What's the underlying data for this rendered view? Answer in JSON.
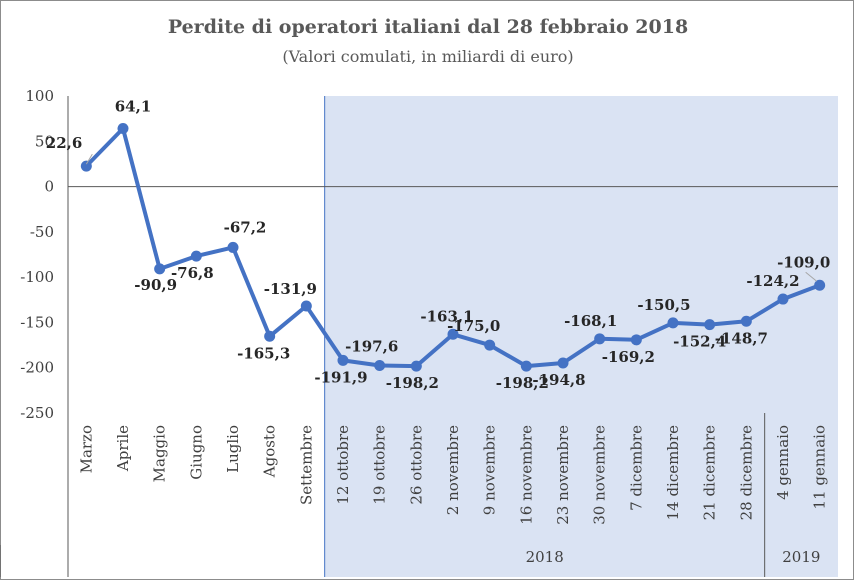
{
  "chart_data": {
    "type": "line",
    "title": "Perdite di operatori italiani  dal 28 febbraio 2018",
    "subtitle": "(Valori comulati, in miliardi di euro)",
    "categories": [
      "Marzo",
      "Aprile",
      "Maggio",
      "Giugno",
      "Luglio",
      "Agosto",
      "Settembre",
      "12 ottobre",
      "19 ottobre",
      "26 ottobre",
      "2 novembre",
      "9 novembre",
      "16 novembre",
      "23 novembre",
      "30 novembre",
      "7 dicembre",
      "14 dicembre",
      "21 dicembre",
      "28 dicembre",
      "4 gennaio",
      "11 gennaio"
    ],
    "values": [
      22.6,
      64.1,
      -90.9,
      -76.8,
      -67.2,
      -165.3,
      -131.9,
      -191.9,
      -197.6,
      -198.2,
      -163.1,
      -175.0,
      -198.2,
      -194.8,
      -168.1,
      -169.2,
      -150.5,
      -152.4,
      -148.7,
      -124.2,
      -109.0
    ],
    "data_labels": [
      "22,6",
      "64,1",
      "-90,9",
      "-76,8",
      "-67,2",
      "-165,3",
      "-131,9",
      "-191,9",
      "-197,6",
      "-198,2",
      "-163,1",
      "-175,0",
      "-198,2",
      "-194,8",
      "-168,1",
      "-169,2",
      "-150,5",
      "-152,4",
      "-148,7",
      "-124,2",
      "-109,0"
    ],
    "yticks": [
      "100",
      "50",
      "0",
      "-50",
      "-100",
      "-150",
      "-200",
      "-250"
    ],
    "ytick_values": [
      100,
      50,
      0,
      -50,
      -100,
      -150,
      -200,
      -250
    ],
    "ylim": [
      -250,
      100
    ],
    "groups": [
      {
        "label": "2018",
        "from": 7,
        "to": 18
      },
      {
        "label": "2019",
        "from": 19,
        "to": 20
      }
    ],
    "highlight_start_index": 7,
    "line_color": "#4472c4",
    "shade_color": "#dae3f3",
    "grid": false
  }
}
